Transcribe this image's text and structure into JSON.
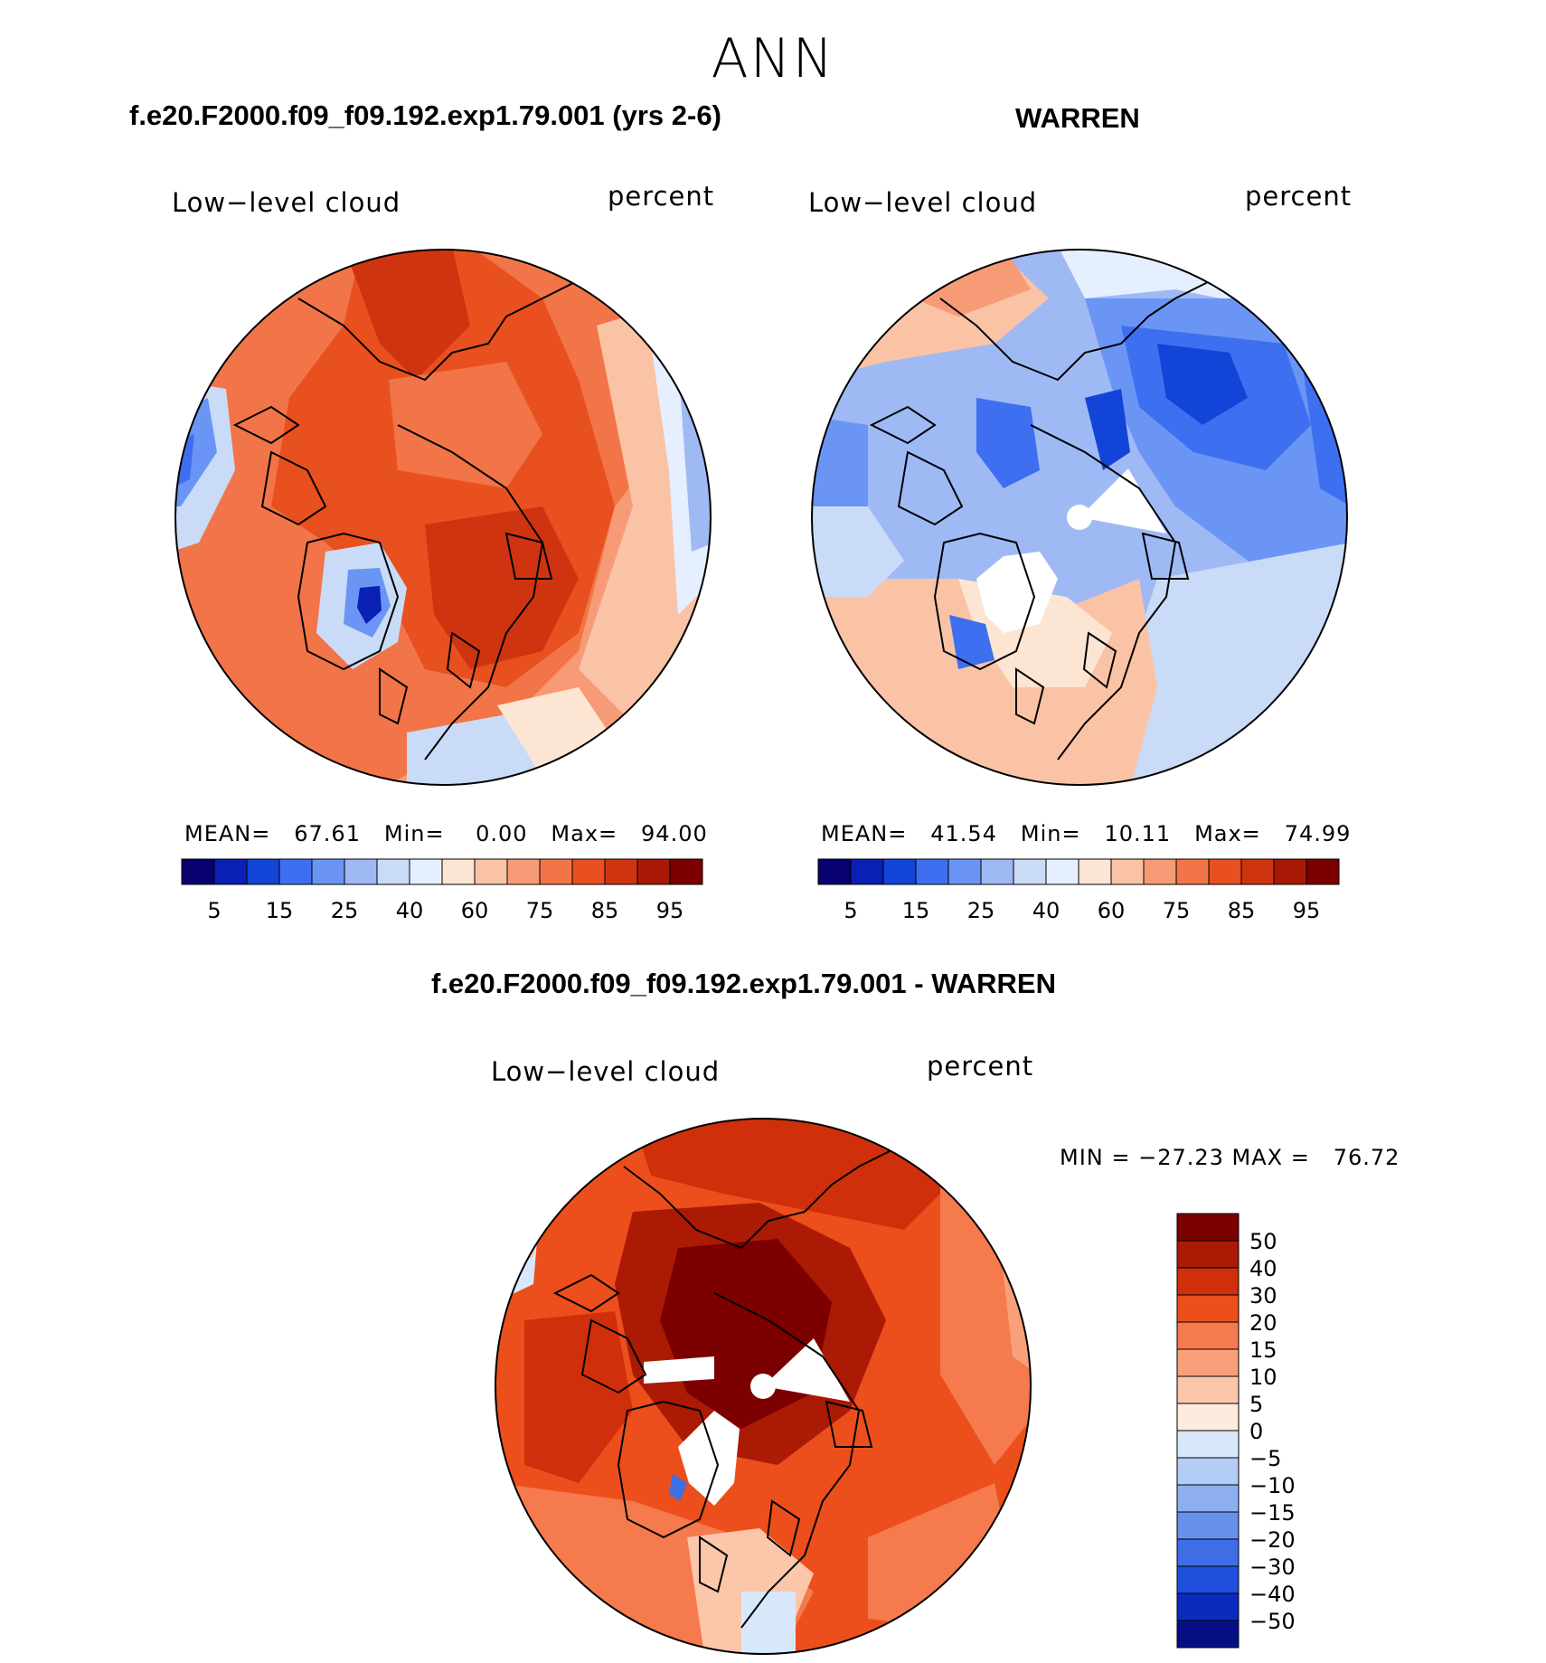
{
  "page_title": "ANN",
  "panels": [
    {
      "case_title": "f.e20.F2000.f09_f09.192.exp1.79.001 (yrs 2-6)",
      "variable": "Low−level cloud",
      "units": "percent",
      "stats": {
        "mean_label": "MEAN=",
        "mean": "67.61",
        "min_label": "Min=",
        "min": "0.00",
        "max_label": "Max=",
        "max": "94.00"
      }
    },
    {
      "case_title": "WARREN",
      "variable": "Low−level cloud",
      "units": "percent",
      "stats": {
        "mean_label": "MEAN=",
        "mean": "41.54",
        "min_label": "Min=",
        "min": "10.11",
        "max_label": "Max=",
        "max": "74.99"
      }
    }
  ],
  "diff_panel": {
    "case_title": "f.e20.F2000.f09_f09.192.exp1.79.001 - WARREN",
    "variable": "Low−level cloud",
    "units": "percent",
    "minmax_text": "MIN = −27.23 MAX =   76.72"
  },
  "chart_data": [
    {
      "type": "heatmap",
      "projection": "north polar stereographic",
      "title": "f.e20.F2000.f09_f09.192.exp1.79.001 (yrs 2-6)",
      "variable": "Low-level cloud",
      "units": "percent",
      "mean": 67.61,
      "min": 0.0,
      "max": 94.0,
      "colorbar_tick_labels": [
        "5",
        "15",
        "25",
        "40",
        "60",
        "75",
        "85",
        "95"
      ]
    },
    {
      "type": "heatmap",
      "projection": "north polar stereographic",
      "title": "WARREN",
      "variable": "Low-level cloud",
      "units": "percent",
      "mean": 41.54,
      "min": 10.11,
      "max": 74.99,
      "colorbar_tick_labels": [
        "5",
        "15",
        "25",
        "40",
        "60",
        "75",
        "85",
        "95"
      ]
    },
    {
      "type": "heatmap",
      "projection": "north polar stereographic",
      "title": "f.e20.F2000.f09_f09.192.exp1.79.001 - WARREN",
      "variable": "Low-level cloud",
      "units": "percent",
      "min": -27.23,
      "max": 76.72,
      "colorbar_tick_labels": [
        "50",
        "40",
        "30",
        "20",
        "15",
        "10",
        "5",
        "0",
        "−5",
        "−10",
        "−15",
        "−20",
        "−30",
        "−40",
        "−50"
      ]
    }
  ],
  "colors": {
    "seq_colorbar": [
      "#08006e",
      "#0a1fb4",
      "#1344d8",
      "#3d6ff0",
      "#6b95f5",
      "#9fb9f4",
      "#c9dbf7",
      "#e6efff",
      "#fde5d3",
      "#fbc3a6",
      "#f79a76",
      "#f17548",
      "#e8501f",
      "#cf3410",
      "#a81905",
      "#7c0000"
    ],
    "diff_colorbar": [
      "#7c0000",
      "#aa1a05",
      "#d02f0c",
      "#ec4f1c",
      "#f57a4d",
      "#f9a07a",
      "#fcc6aa",
      "#fdebdd",
      "#d8e8fb",
      "#b4cdf6",
      "#8dafef",
      "#6690ec",
      "#3e6ee6",
      "#1f4fdc",
      "#0a2bbd",
      "#050f85"
    ],
    "land_outline": "#000000"
  }
}
